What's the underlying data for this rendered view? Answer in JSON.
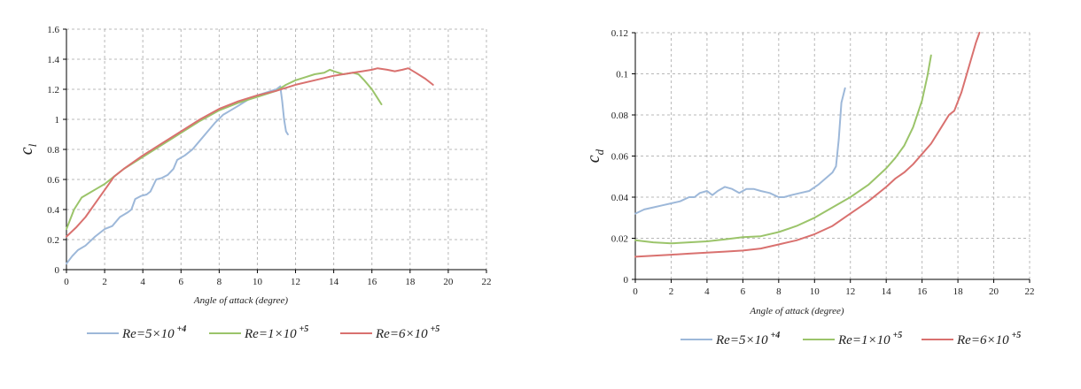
{
  "chart_data": [
    {
      "type": "line",
      "ylabel": "c",
      "ylabel_sub": "l",
      "xlabel": "Angle of attack (degree)",
      "xlim": [
        0,
        22
      ],
      "ylim": [
        0,
        1.6
      ],
      "x_ticks": [
        "0",
        "2",
        "4",
        "6",
        "8",
        "10",
        "12",
        "14",
        "16",
        "18",
        "20",
        "22"
      ],
      "y_ticks": [
        "0",
        "0.2",
        "0.4",
        "0.6",
        "0.8",
        "1",
        "1.2",
        "1.4",
        "1.6"
      ],
      "grid": true,
      "legend_position": "bottom",
      "series": [
        {
          "name": "Re=5×10",
          "name_sup": "+4",
          "color": "#9db8d9",
          "x": [
            0,
            0.3,
            0.6,
            1.0,
            1.5,
            2.0,
            2.4,
            2.8,
            3.2,
            3.4,
            3.6,
            3.9,
            4.2,
            4.4,
            4.7,
            5.0,
            5.3,
            5.6,
            5.8,
            6.2,
            6.6,
            7.0,
            7.4,
            7.8,
            8.2,
            8.6,
            9.0,
            9.5,
            10.0,
            10.5,
            11.0,
            11.2,
            11.3,
            11.4,
            11.5,
            11.6
          ],
          "y": [
            0.04,
            0.09,
            0.13,
            0.16,
            0.22,
            0.27,
            0.29,
            0.35,
            0.38,
            0.4,
            0.47,
            0.49,
            0.5,
            0.52,
            0.6,
            0.61,
            0.63,
            0.67,
            0.73,
            0.76,
            0.8,
            0.86,
            0.92,
            0.98,
            1.03,
            1.06,
            1.09,
            1.13,
            1.16,
            1.18,
            1.2,
            1.22,
            1.12,
            1.0,
            0.92,
            0.9
          ]
        },
        {
          "name": "Re=1×10",
          "name_sup": "+5",
          "color": "#9bc46a",
          "x": [
            0,
            0.4,
            0.8,
            1.2,
            1.6,
            2.0,
            2.4,
            3.0,
            4.0,
            5.0,
            6.0,
            7.0,
            8.0,
            9.0,
            10.0,
            11.0,
            11.5,
            12.0,
            12.5,
            13.0,
            13.5,
            13.8,
            14.0,
            14.5,
            15.0,
            15.3,
            15.6,
            16.0,
            16.3,
            16.5
          ],
          "y": [
            0.27,
            0.4,
            0.48,
            0.51,
            0.54,
            0.57,
            0.61,
            0.67,
            0.75,
            0.83,
            0.91,
            0.99,
            1.06,
            1.11,
            1.15,
            1.19,
            1.23,
            1.26,
            1.28,
            1.3,
            1.31,
            1.33,
            1.32,
            1.3,
            1.31,
            1.3,
            1.26,
            1.2,
            1.14,
            1.1
          ]
        },
        {
          "name": "Re=6×10",
          "name_sup": "+5",
          "color": "#d9716f",
          "x": [
            0,
            0.5,
            1.0,
            1.5,
            2.0,
            2.5,
            3.0,
            4.0,
            5.0,
            6.0,
            7.0,
            8.0,
            9.0,
            10.0,
            11.0,
            12.0,
            13.0,
            14.0,
            15.0,
            15.5,
            16.0,
            16.3,
            16.8,
            17.2,
            17.6,
            17.9,
            18.3,
            18.8,
            19.2
          ],
          "y": [
            0.22,
            0.28,
            0.35,
            0.44,
            0.53,
            0.62,
            0.67,
            0.76,
            0.84,
            0.92,
            1.0,
            1.07,
            1.12,
            1.16,
            1.19,
            1.23,
            1.26,
            1.29,
            1.31,
            1.32,
            1.33,
            1.34,
            1.33,
            1.32,
            1.33,
            1.34,
            1.31,
            1.27,
            1.23
          ]
        }
      ]
    },
    {
      "type": "line",
      "ylabel": "c",
      "ylabel_sub": "d",
      "xlabel": "Angle of attack (degree)",
      "xlim": [
        0,
        22
      ],
      "ylim": [
        0,
        0.12
      ],
      "x_ticks": [
        "0",
        "2",
        "4",
        "6",
        "8",
        "10",
        "12",
        "14",
        "16",
        "18",
        "20",
        "22"
      ],
      "y_ticks": [
        "0",
        "0.02",
        "0.04",
        "0.06",
        "0.08",
        "0.1",
        "0.12"
      ],
      "grid": true,
      "legend_position": "bottom",
      "series": [
        {
          "name": "Re=5×10",
          "name_sup": "+4",
          "color": "#9db8d9",
          "x": [
            0,
            0.5,
            1.0,
            1.5,
            2.0,
            2.5,
            3.0,
            3.3,
            3.6,
            4.0,
            4.3,
            4.6,
            5.0,
            5.4,
            5.8,
            6.2,
            6.6,
            7.0,
            7.5,
            8.0,
            8.3,
            8.7,
            9.2,
            9.7,
            10.2,
            10.6,
            11.0,
            11.2,
            11.35,
            11.5,
            11.7
          ],
          "y": [
            0.032,
            0.034,
            0.035,
            0.036,
            0.037,
            0.038,
            0.04,
            0.04,
            0.042,
            0.043,
            0.041,
            0.043,
            0.045,
            0.044,
            0.042,
            0.044,
            0.044,
            0.043,
            0.042,
            0.04,
            0.04,
            0.041,
            0.042,
            0.043,
            0.046,
            0.049,
            0.052,
            0.055,
            0.068,
            0.086,
            0.093
          ]
        },
        {
          "name": "Re=1×10",
          "name_sup": "+5",
          "color": "#9bc46a",
          "x": [
            0,
            1.0,
            2.0,
            3.0,
            4.0,
            5.0,
            6.0,
            7.0,
            8.0,
            9.0,
            10.0,
            11.0,
            12.0,
            13.0,
            14.0,
            14.5,
            15.0,
            15.5,
            16.0,
            16.3,
            16.5
          ],
          "y": [
            0.019,
            0.018,
            0.0175,
            0.018,
            0.0185,
            0.0195,
            0.0205,
            0.021,
            0.023,
            0.026,
            0.03,
            0.035,
            0.04,
            0.046,
            0.054,
            0.059,
            0.065,
            0.074,
            0.087,
            0.099,
            0.109
          ]
        },
        {
          "name": "Re=6×10",
          "name_sup": "+5",
          "color": "#d9716f",
          "x": [
            0,
            1.0,
            2.0,
            3.0,
            4.0,
            5.0,
            6.0,
            7.0,
            8.0,
            9.0,
            10.0,
            11.0,
            12.0,
            13.0,
            14.0,
            14.5,
            15.0,
            15.5,
            16.0,
            16.5,
            17.0,
            17.5,
            17.8,
            18.2,
            18.6,
            19.0,
            19.2
          ],
          "y": [
            0.011,
            0.0115,
            0.012,
            0.0125,
            0.013,
            0.0135,
            0.014,
            0.015,
            0.017,
            0.019,
            0.022,
            0.026,
            0.032,
            0.038,
            0.045,
            0.049,
            0.052,
            0.056,
            0.061,
            0.066,
            0.073,
            0.08,
            0.082,
            0.091,
            0.103,
            0.115,
            0.12
          ]
        }
      ]
    }
  ]
}
